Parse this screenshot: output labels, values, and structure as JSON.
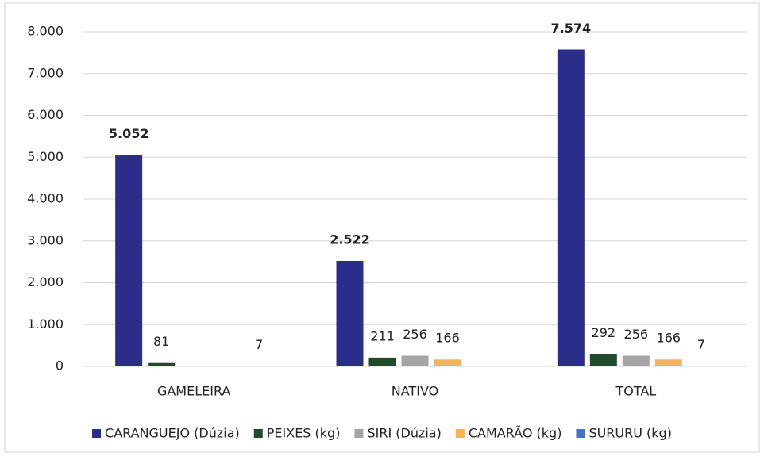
{
  "chart_data": {
    "type": "bar",
    "categories": [
      "GAMELEIRA",
      "NATIVO",
      "TOTAL"
    ],
    "series": [
      {
        "name": "CARANGUEJO (Dúzia)",
        "color": "#2b2d8a",
        "values": [
          5052,
          2522,
          7574
        ],
        "value_labels": [
          "5.052",
          "2.522",
          "7.574"
        ]
      },
      {
        "name": "PEIXES (kg)",
        "color": "#1f4a2c",
        "values": [
          81,
          211,
          292
        ]
      },
      {
        "name": "SIRI (Dúzia)",
        "color": "#a5a5a5",
        "values": [
          null,
          256,
          256
        ]
      },
      {
        "name": "CAMARÃO (kg)",
        "color": "#f5b35c",
        "values": [
          null,
          166,
          166
        ]
      },
      {
        "name": "SURURU (kg)",
        "color": "#4472c4",
        "values": [
          7,
          null,
          7
        ]
      }
    ],
    "ylim": [
      0,
      8000
    ],
    "yticks": [
      0,
      {
        "value": 1000,
        "label": "1.000"
      },
      {
        "value": 2000,
        "label": "2.000"
      },
      {
        "value": 3000,
        "label": "3.000"
      },
      {
        "value": 4000,
        "label": "4.000"
      },
      {
        "value": 5000,
        "label": "5.000"
      },
      {
        "value": 6000,
        "label": "6.000"
      },
      {
        "value": 7000,
        "label": "7.000"
      },
      {
        "value": 8000,
        "label": "8.000"
      }
    ],
    "grid": true,
    "legend": "bottom"
  }
}
